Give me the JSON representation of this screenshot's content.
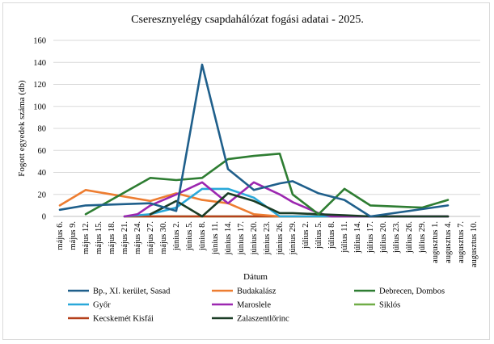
{
  "chart_data": {
    "type": "line",
    "title": "Cseresznyelégy csapdahálózat fogási adatai - 2025.",
    "xlabel": "Dátum",
    "ylabel": "Fogott egyedek száma (db)",
    "ylim": [
      0,
      160
    ],
    "yticks": [
      "0",
      "20",
      "40",
      "60",
      "80",
      "100",
      "120",
      "140",
      "160"
    ],
    "grid": "horizontal",
    "legend": "bottom",
    "categories": [
      "május 6.",
      "május 9.",
      "május 12.",
      "május 15.",
      "május 18.",
      "május 21.",
      "május 24.",
      "május 27.",
      "május 30.",
      "június 2.",
      "június 5.",
      "június 8.",
      "június 11.",
      "június 14.",
      "június 17.",
      "június 20.",
      "június 23.",
      "június 26.",
      "június 29.",
      "július 2.",
      "július 5.",
      "július 8.",
      "július 11.",
      "július 14.",
      "július 17.",
      "július 20.",
      "július 23.",
      "július 26.",
      "július 29.",
      "augusztus 1.",
      "augusztus 4.",
      "augusztus 7.",
      "augusztus 10."
    ],
    "series": [
      {
        "name": "Bp., XI. kerület, Sasad",
        "color": "#1f5f8b",
        "points": [
          [
            0,
            6
          ],
          [
            2,
            10
          ],
          [
            7,
            12
          ],
          [
            9,
            5
          ],
          [
            11,
            138
          ],
          [
            13,
            43
          ],
          [
            15,
            24
          ],
          [
            17,
            30
          ],
          [
            18,
            32
          ],
          [
            20,
            21
          ],
          [
            22,
            15
          ],
          [
            24,
            0
          ],
          [
            30,
            10
          ]
        ]
      },
      {
        "name": "Budakalász",
        "color": "#ed7d31",
        "points": [
          [
            0,
            10
          ],
          [
            2,
            24
          ],
          [
            7,
            14
          ],
          [
            9,
            21
          ],
          [
            11,
            15
          ],
          [
            13,
            12
          ],
          [
            15,
            2
          ],
          [
            17,
            0
          ],
          [
            30,
            0
          ]
        ]
      },
      {
        "name": "Debrecen, Dombos",
        "color": "#2e7d32",
        "points": [
          [
            2,
            2
          ],
          [
            7,
            35
          ],
          [
            9,
            33
          ],
          [
            11,
            35
          ],
          [
            13,
            52
          ],
          [
            15,
            55
          ],
          [
            17,
            57
          ],
          [
            18,
            20
          ],
          [
            20,
            2
          ],
          [
            22,
            25
          ],
          [
            24,
            10
          ],
          [
            28,
            8
          ],
          [
            30,
            15
          ]
        ]
      },
      {
        "name": "Győr",
        "color": "#29a8d9",
        "points": [
          [
            5,
            0
          ],
          [
            7,
            2
          ],
          [
            9,
            8
          ],
          [
            11,
            25
          ],
          [
            13,
            25
          ],
          [
            15,
            17
          ],
          [
            17,
            0
          ],
          [
            30,
            0
          ]
        ]
      },
      {
        "name": "Maroslele",
        "color": "#9c27b0",
        "points": [
          [
            5,
            0
          ],
          [
            6,
            2
          ],
          [
            7,
            10
          ],
          [
            9,
            20
          ],
          [
            11,
            31
          ],
          [
            13,
            12
          ],
          [
            15,
            31
          ],
          [
            17,
            20
          ],
          [
            18,
            13
          ],
          [
            20,
            3
          ],
          [
            21,
            0
          ],
          [
            30,
            0
          ]
        ]
      },
      {
        "name": "Siklós",
        "color": "#70ad47",
        "points": [
          [
            5,
            0
          ],
          [
            30,
            0
          ]
        ]
      },
      {
        "name": "Kecskemét Kisfái",
        "color": "#b5401b",
        "points": [
          [
            5,
            0
          ],
          [
            30,
            0
          ]
        ]
      },
      {
        "name": "Zalaszentlőrinc",
        "color": "#1b3d26",
        "points": [
          [
            7,
            2
          ],
          [
            9,
            14
          ],
          [
            11,
            0
          ],
          [
            13,
            21
          ],
          [
            15,
            14
          ],
          [
            17,
            3
          ],
          [
            18,
            3
          ],
          [
            20,
            2
          ],
          [
            22,
            1
          ],
          [
            24,
            0
          ],
          [
            30,
            0
          ]
        ]
      }
    ]
  }
}
